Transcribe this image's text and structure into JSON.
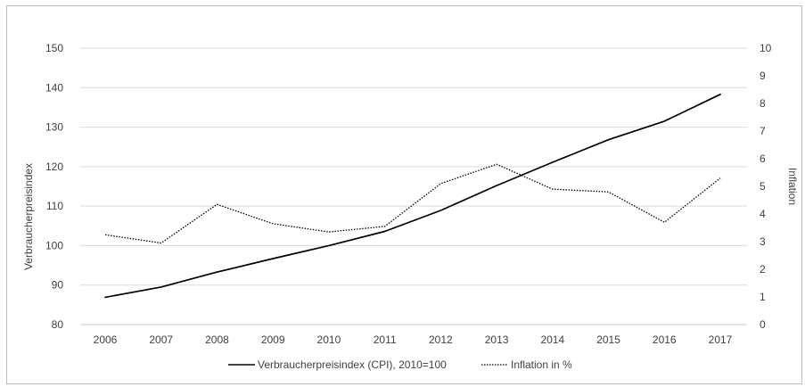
{
  "chart_data": {
    "type": "line",
    "title": "",
    "x": [
      "2006",
      "2007",
      "2008",
      "2009",
      "2010",
      "2011",
      "2012",
      "2013",
      "2014",
      "2015",
      "2016",
      "2017"
    ],
    "y_left": {
      "label": "Verbraucherpreisindex",
      "ylim": [
        80,
        150
      ],
      "ticks": [
        "80",
        "90",
        "100",
        "110",
        "120",
        "130",
        "140",
        "150"
      ]
    },
    "y_right": {
      "label": "Inflation",
      "ylim": [
        0,
        10
      ],
      "ticks": [
        "0",
        "1",
        "2",
        "3",
        "4",
        "5",
        "6",
        "7",
        "8",
        "9",
        "10"
      ]
    },
    "series": [
      {
        "name": "Verbraucherpreisindex (CPI), 2010=100",
        "axis": "left",
        "style": "solid",
        "color": "#000000",
        "values": [
          86.9,
          89.5,
          93.3,
          96.7,
          100.0,
          103.6,
          108.9,
          115.2,
          121.1,
          126.8,
          131.5,
          138.3
        ]
      },
      {
        "name": "Inflation in %",
        "axis": "right",
        "style": "dotted",
        "color": "#000000",
        "values": [
          3.25,
          2.95,
          4.35,
          3.65,
          3.35,
          3.55,
          5.1,
          5.8,
          4.9,
          4.8,
          3.7,
          5.3
        ]
      }
    ],
    "grid": true,
    "legend": "bottom"
  }
}
